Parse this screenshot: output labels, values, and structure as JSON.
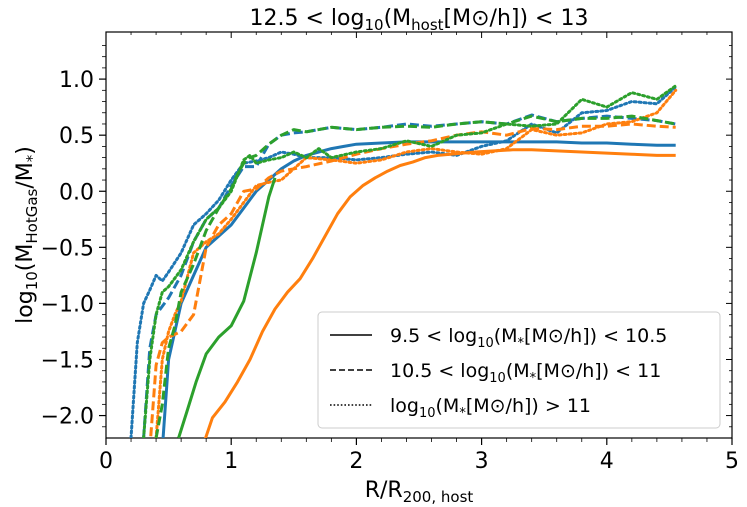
{
  "chart_data": {
    "type": "line",
    "title": "12.5 < log10(Mhost[M⊙/h]) < 13",
    "title_parts": {
      "pre": "12.5 < log",
      "sub1": "10",
      "mid": "(M",
      "sub2": "host",
      "post": "[M⊙/h]) < 13"
    },
    "xlabel": "R/R200, host",
    "xlabel_parts": {
      "main": "R/R",
      "sub": "200, host"
    },
    "ylabel": "log10(MHotGas/M*)",
    "ylabel_parts": {
      "pre": "log",
      "sub1": "10",
      "mid": "(M",
      "sub2": "HotGas",
      "post": "/M",
      "sub3": "*",
      "end": ")"
    },
    "xlim": [
      0,
      5
    ],
    "ylim": [
      -2.2,
      1.42
    ],
    "xticks": [
      0,
      1,
      2,
      3,
      4,
      5
    ],
    "xtick_labels": [
      "0",
      "1",
      "2",
      "3",
      "4",
      "5"
    ],
    "yticks": [
      -2.0,
      -1.5,
      -1.0,
      -0.5,
      0.0,
      0.5,
      1.0
    ],
    "ytick_labels": [
      "−2.0",
      "−1.5",
      "−1.0",
      "−0.5",
      "0.0",
      "0.5",
      "1.0"
    ],
    "colors": {
      "blue": "#1f77b4",
      "orange": "#ff7f0e",
      "green": "#2ca02c"
    },
    "legend": {
      "location": "bottom-right",
      "entries": [
        {
          "style": "solid",
          "label": "9.5 < log10(M*[M⊙/h]) < 10.5",
          "parts": {
            "pre": "9.5 < log",
            "sub1": "10",
            "mid": "(M",
            "sub2": "*",
            "post": "[M⊙/h]) < 10.5"
          }
        },
        {
          "style": "dashed",
          "label": "10.5 < log10(M*[M⊙/h]) < 11",
          "parts": {
            "pre": "10.5 < log",
            "sub1": "10",
            "mid": "(M",
            "sub2": "*",
            "post": "[M⊙/h]) < 11"
          }
        },
        {
          "style": "dotted",
          "label": "log10(M*[M⊙/h]) > 11",
          "parts": {
            "pre": "log",
            "sub1": "10",
            "mid": "(M",
            "sub2": "*",
            "post": "[M⊙/h]) > 11"
          }
        }
      ]
    },
    "series": [
      {
        "name": "blue-solid",
        "color": "blue",
        "style": "solid",
        "x": [
          0.45,
          0.5,
          0.6,
          0.7,
          0.8,
          0.9,
          1.0,
          1.1,
          1.2,
          1.3,
          1.4,
          1.5,
          1.6,
          1.7,
          1.8,
          1.9,
          2.0,
          2.2,
          2.4,
          2.6,
          2.8,
          3.0,
          3.2,
          3.4,
          3.6,
          3.8,
          4.0,
          4.2,
          4.4,
          4.55
        ],
        "y": [
          -2.3,
          -1.5,
          -1.0,
          -0.75,
          -0.5,
          -0.4,
          -0.3,
          -0.15,
          0.0,
          0.1,
          0.2,
          0.27,
          0.32,
          0.35,
          0.38,
          0.4,
          0.42,
          0.43,
          0.44,
          0.44,
          0.44,
          0.44,
          0.44,
          0.44,
          0.44,
          0.43,
          0.43,
          0.42,
          0.41,
          0.41
        ]
      },
      {
        "name": "blue-dashed",
        "color": "blue",
        "style": "dashed",
        "x": [
          0.3,
          0.35,
          0.4,
          0.5,
          0.6,
          0.7,
          0.8,
          0.9,
          1.0,
          1.1,
          1.2,
          1.3,
          1.4,
          1.5,
          1.6,
          1.8,
          2.0,
          2.2,
          2.4,
          2.6,
          2.8,
          3.0,
          3.2,
          3.4,
          3.6,
          3.8,
          4.0,
          4.2,
          4.4,
          4.55
        ],
        "y": [
          -2.2,
          -1.4,
          -1.1,
          -0.95,
          -0.75,
          -0.45,
          -0.25,
          -0.15,
          0.05,
          0.22,
          0.22,
          0.42,
          0.5,
          0.52,
          0.53,
          0.57,
          0.55,
          0.57,
          0.6,
          0.58,
          0.6,
          0.62,
          0.6,
          0.68,
          0.62,
          0.65,
          0.67,
          0.65,
          0.63,
          0.6
        ]
      },
      {
        "name": "blue-dotted",
        "color": "blue",
        "style": "dotted",
        "x": [
          0.2,
          0.25,
          0.3,
          0.35,
          0.4,
          0.45,
          0.5,
          0.6,
          0.7,
          0.8,
          0.9,
          1.0,
          1.1,
          1.2,
          1.3,
          1.4,
          1.5,
          1.6,
          1.8,
          2.0,
          2.2,
          2.4,
          2.6,
          2.8,
          3.0,
          3.2,
          3.4,
          3.6,
          3.8,
          4.0,
          4.2,
          4.4,
          4.55
        ],
        "y": [
          -2.2,
          -1.35,
          -1.0,
          -0.88,
          -0.75,
          -0.8,
          -0.72,
          -0.55,
          -0.3,
          -0.2,
          -0.08,
          0.1,
          0.25,
          0.27,
          0.3,
          0.35,
          0.33,
          0.3,
          0.3,
          0.28,
          0.3,
          0.33,
          0.35,
          0.32,
          0.4,
          0.45,
          0.6,
          0.52,
          0.7,
          0.72,
          0.8,
          0.78,
          0.93
        ]
      },
      {
        "name": "orange-solid",
        "color": "orange",
        "style": "solid",
        "x": [
          0.78,
          0.85,
          0.95,
          1.05,
          1.15,
          1.25,
          1.35,
          1.45,
          1.55,
          1.65,
          1.75,
          1.85,
          1.95,
          2.05,
          2.15,
          2.25,
          2.35,
          2.45,
          2.55,
          2.65,
          2.75,
          2.85,
          2.95,
          3.1,
          3.25,
          3.4,
          3.6,
          3.8,
          4.0,
          4.2,
          4.4,
          4.55
        ],
        "y": [
          -2.25,
          -2.02,
          -1.88,
          -1.7,
          -1.5,
          -1.25,
          -1.05,
          -0.9,
          -0.78,
          -0.6,
          -0.4,
          -0.2,
          -0.05,
          0.05,
          0.12,
          0.18,
          0.23,
          0.26,
          0.3,
          0.32,
          0.33,
          0.34,
          0.35,
          0.36,
          0.37,
          0.37,
          0.36,
          0.35,
          0.34,
          0.33,
          0.32,
          0.32
        ]
      },
      {
        "name": "orange-dashed",
        "color": "orange",
        "style": "dashed",
        "x": [
          0.35,
          0.4,
          0.45,
          0.5,
          0.6,
          0.7,
          0.8,
          0.9,
          1.0,
          1.1,
          1.2,
          1.3,
          1.4,
          1.5,
          1.6,
          1.8,
          2.0,
          2.2,
          2.4,
          2.6,
          2.8,
          3.0,
          3.2,
          3.4,
          3.6,
          3.8,
          4.0,
          4.2,
          4.4,
          4.55
        ],
        "y": [
          -2.3,
          -1.55,
          -1.35,
          -1.3,
          -1.25,
          -1.1,
          -0.5,
          -0.3,
          -0.2,
          0.0,
          0.02,
          0.12,
          0.18,
          0.2,
          0.22,
          0.27,
          0.33,
          0.38,
          0.42,
          0.45,
          0.5,
          0.53,
          0.5,
          0.56,
          0.55,
          0.58,
          0.58,
          0.6,
          0.58,
          0.57
        ]
      },
      {
        "name": "orange-dotted",
        "color": "orange",
        "style": "dotted",
        "x": [
          0.4,
          0.45,
          0.5,
          0.55,
          0.6,
          0.7,
          0.8,
          0.9,
          1.0,
          1.1,
          1.2,
          1.3,
          1.4,
          1.5,
          1.6,
          1.8,
          2.0,
          2.2,
          2.4,
          2.6,
          2.8,
          3.0,
          3.2,
          3.4,
          3.6,
          3.8,
          4.0,
          4.2,
          4.4,
          4.55
        ],
        "y": [
          -2.2,
          -1.5,
          -1.25,
          -1.1,
          -0.98,
          -0.55,
          -0.45,
          -0.38,
          -0.25,
          -0.1,
          0.05,
          0.08,
          0.1,
          0.2,
          0.3,
          0.28,
          0.25,
          0.28,
          0.35,
          0.38,
          0.35,
          0.33,
          0.38,
          0.55,
          0.5,
          0.52,
          0.6,
          0.62,
          0.7,
          0.9
        ]
      },
      {
        "name": "green-solid",
        "color": "green",
        "style": "solid",
        "x": [
          0.58,
          0.65,
          0.72,
          0.8,
          0.9,
          1.0,
          1.1,
          1.2,
          1.3,
          1.35
        ],
        "y": [
          -2.2,
          -1.95,
          -1.7,
          -1.45,
          -1.3,
          -1.2,
          -0.98,
          -0.55,
          -0.05,
          0.12
        ]
      },
      {
        "name": "green-dashed",
        "color": "green",
        "style": "dashed",
        "x": [
          0.4,
          0.45,
          0.5,
          0.55,
          0.6,
          0.7,
          0.8,
          0.9,
          1.0,
          1.05,
          1.1,
          1.15,
          1.2,
          1.3,
          1.4,
          1.5,
          1.6,
          1.8,
          2.0,
          2.2,
          2.4,
          2.6,
          2.8,
          3.0,
          3.2,
          3.4,
          3.6,
          3.8,
          4.0,
          4.2,
          4.4,
          4.55
        ],
        "y": [
          -2.2,
          -1.9,
          -1.4,
          -1.2,
          -0.9,
          -0.65,
          -0.35,
          -0.15,
          0.02,
          0.15,
          0.25,
          0.3,
          0.32,
          0.42,
          0.5,
          0.55,
          0.53,
          0.57,
          0.55,
          0.57,
          0.58,
          0.57,
          0.6,
          0.62,
          0.6,
          0.67,
          0.62,
          0.65,
          0.65,
          0.67,
          0.63,
          0.6
        ]
      },
      {
        "name": "green-dotted",
        "color": "green",
        "style": "dotted",
        "x": [
          0.3,
          0.35,
          0.4,
          0.45,
          0.5,
          0.6,
          0.7,
          0.8,
          0.9,
          1.0,
          1.1,
          1.15,
          1.2,
          1.3,
          1.4,
          1.5,
          1.6,
          1.7,
          1.8,
          2.0,
          2.2,
          2.4,
          2.6,
          2.8,
          3.0,
          3.2,
          3.4,
          3.6,
          3.8,
          4.0,
          4.2,
          4.4,
          4.55
        ],
        "y": [
          -2.2,
          -1.5,
          -1.1,
          -0.9,
          -0.85,
          -0.7,
          -0.45,
          -0.25,
          -0.15,
          0.0,
          0.28,
          0.32,
          0.25,
          0.28,
          0.3,
          0.35,
          0.3,
          0.38,
          0.3,
          0.35,
          0.38,
          0.45,
          0.4,
          0.5,
          0.52,
          0.6,
          0.58,
          0.6,
          0.82,
          0.75,
          0.88,
          0.82,
          0.94
        ]
      }
    ]
  }
}
